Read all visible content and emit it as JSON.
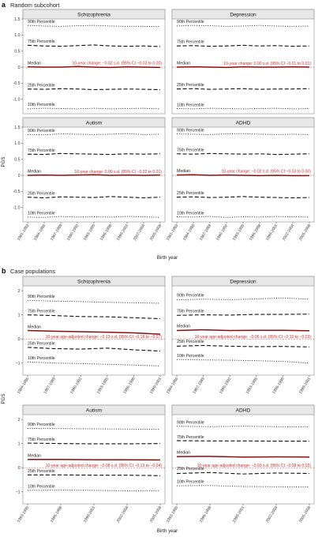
{
  "figure": {
    "sections": [
      {
        "letter": "a",
        "title": "Random subcohort",
        "xlabel": "Birth year",
        "ylabel": "PGS"
      },
      {
        "letter": "b",
        "title": "Case populations",
        "xlabel": "Birth year",
        "ylabel": "PGS"
      }
    ]
  },
  "colors": {
    "median": "#8a0e0e",
    "zero_line": "#e05050",
    "annotation": "#d62a2a",
    "panel_header": "#e8e8e8",
    "series": "#111111"
  },
  "chart_data": [
    {
      "section": "a",
      "panel": "Schizophrenia",
      "type": "line",
      "x": [
        "1981-1983",
        "1984-1986",
        "1987-1989",
        "1990-1992",
        "1993-1995",
        "1996-1998",
        "1999-2001",
        "2002-2004",
        "2005-2008"
      ],
      "ylim": [
        -1.45,
        1.5
      ],
      "yticks": [
        -1.0,
        -0.5,
        0,
        0.5,
        1.0,
        1.5
      ],
      "ytick_labels": [
        "-1.0",
        "-0.5",
        "0",
        "0.5",
        "1.0",
        "1.5"
      ],
      "series": [
        {
          "name": "90th Percentile",
          "values": [
            1.3,
            1.28,
            1.27,
            1.29,
            1.3,
            1.28,
            1.27,
            1.27,
            1.26
          ]
        },
        {
          "name": "75th Percentile",
          "values": [
            0.68,
            0.66,
            0.65,
            0.67,
            0.69,
            0.66,
            0.65,
            0.66,
            0.64
          ]
        },
        {
          "name": "Median",
          "values": [
            0.01,
            0.0,
            0.0,
            0.02,
            0.0,
            -0.01,
            0.01,
            0.0,
            -0.01
          ]
        },
        {
          "name": "25th Percentile",
          "values": [
            -0.68,
            -0.69,
            -0.67,
            -0.68,
            -0.7,
            -0.69,
            -0.68,
            -0.69,
            -0.7
          ]
        },
        {
          "name": "10th Percentile",
          "values": [
            -1.3,
            -1.28,
            -1.29,
            -1.3,
            -1.28,
            -1.3,
            -1.29,
            -1.28,
            -1.3
          ]
        }
      ],
      "annotation": "10-year change: −0.02 s.d. (95% CI −0.03 to 0.00)"
    },
    {
      "section": "a",
      "panel": "Depression",
      "type": "line",
      "x": [
        "1981-1983",
        "1984-1986",
        "1987-1989",
        "1990-1992",
        "1993-1995",
        "1996-1998",
        "1999-2001",
        "2002-2004",
        "2005-2008"
      ],
      "ylim": [
        -1.45,
        1.5
      ],
      "yticks": [
        -1.0,
        -0.5,
        0,
        0.5,
        1.0,
        1.5
      ],
      "ytick_labels": [
        "-1.0",
        "-0.5",
        "0",
        "0.5",
        "1.0",
        "1.5"
      ],
      "series": [
        {
          "name": "90th Percentile",
          "values": [
            1.28,
            1.3,
            1.29,
            1.27,
            1.28,
            1.3,
            1.28,
            1.27,
            1.28
          ]
        },
        {
          "name": "75th Percentile",
          "values": [
            0.66,
            0.67,
            0.65,
            0.66,
            0.68,
            0.66,
            0.67,
            0.65,
            0.66
          ]
        },
        {
          "name": "Median",
          "values": [
            0.0,
            0.01,
            0.0,
            -0.01,
            0.01,
            0.0,
            0.0,
            0.01,
            0.0
          ]
        },
        {
          "name": "25th Percentile",
          "values": [
            -0.68,
            -0.67,
            -0.69,
            -0.68,
            -0.67,
            -0.69,
            -0.68,
            -0.68,
            -0.67
          ]
        },
        {
          "name": "10th Percentile",
          "values": [
            -1.29,
            -1.3,
            -1.28,
            -1.29,
            -1.3,
            -1.29,
            -1.28,
            -1.3,
            -1.29
          ]
        }
      ],
      "annotation": "10-year change: 0.00 s.d. (95% CI −0.01 to 0.01)"
    },
    {
      "section": "a",
      "panel": "Autism",
      "type": "line",
      "x": [
        "1981-1983",
        "1984-1986",
        "1987-1989",
        "1990-1992",
        "1993-1995",
        "1996-1998",
        "1999-2001",
        "2002-2004",
        "2005-2008"
      ],
      "ylim": [
        -1.45,
        1.5
      ],
      "yticks": [
        -1.0,
        -0.5,
        0,
        0.5,
        1.0,
        1.5
      ],
      "ytick_labels": [
        "-1.0",
        "-0.5",
        "0",
        "0.5",
        "1.0",
        "1.5"
      ],
      "series": [
        {
          "name": "90th Percentile",
          "values": [
            1.27,
            1.26,
            1.29,
            1.28,
            1.27,
            1.28,
            1.3,
            1.27,
            1.28
          ]
        },
        {
          "name": "75th Percentile",
          "values": [
            0.66,
            0.65,
            0.68,
            0.67,
            0.66,
            0.65,
            0.67,
            0.66,
            0.67
          ]
        },
        {
          "name": "Median",
          "values": [
            0.0,
            0.01,
            0.0,
            0.01,
            0.02,
            0.0,
            0.01,
            0.0,
            0.01
          ]
        },
        {
          "name": "25th Percentile",
          "values": [
            -0.68,
            -0.7,
            -0.67,
            -0.68,
            -0.69,
            -0.66,
            -0.68,
            -0.7,
            -0.68
          ]
        },
        {
          "name": "10th Percentile",
          "values": [
            -1.3,
            -1.31,
            -1.28,
            -1.3,
            -1.29,
            -1.3,
            -1.28,
            -1.29,
            -1.31
          ]
        }
      ],
      "annotation": "10-year change: 0.00 s.d. (95% CI −0.02 to 0.01)"
    },
    {
      "section": "a",
      "panel": "ADHD",
      "type": "line",
      "x": [
        "1981-1983",
        "1984-1986",
        "1987-1989",
        "1990-1992",
        "1993-1995",
        "1996-1998",
        "1999-2001",
        "2002-2004",
        "2005-2008"
      ],
      "ylim": [
        -1.45,
        1.5
      ],
      "yticks": [
        -1.0,
        -0.5,
        0,
        0.5,
        1.0,
        1.5
      ],
      "ytick_labels": [
        "-1.0",
        "-0.5",
        "0",
        "0.5",
        "1.0",
        "1.5"
      ],
      "series": [
        {
          "name": "90th Percentile",
          "values": [
            1.29,
            1.28,
            1.27,
            1.29,
            1.3,
            1.28,
            1.27,
            1.28,
            1.27
          ]
        },
        {
          "name": "75th Percentile",
          "values": [
            0.67,
            0.66,
            0.68,
            0.67,
            0.66,
            0.67,
            0.65,
            0.66,
            0.67
          ]
        },
        {
          "name": "Median",
          "values": [
            0.01,
            0.02,
            0.0,
            0.01,
            0.0,
            -0.01,
            0.0,
            -0.01,
            -0.01
          ]
        },
        {
          "name": "25th Percentile",
          "values": [
            -0.68,
            -0.67,
            -0.69,
            -0.68,
            -0.66,
            -0.68,
            -0.69,
            -0.7,
            -0.69
          ]
        },
        {
          "name": "10th Percentile",
          "values": [
            -1.29,
            -1.3,
            -1.28,
            -1.31,
            -1.29,
            -1.3,
            -1.28,
            -1.29,
            -1.3
          ]
        }
      ],
      "annotation": "10-year change: −0.02 s.d. (95% CI −0.03 to 0.00)"
    },
    {
      "section": "b",
      "panel": "Schizophrenia",
      "type": "line",
      "x": [
        "1984-1986",
        "1987-1989",
        "1990-1992",
        "1993-1995",
        "1996-1998",
        "1999-2001"
      ],
      "ylim": [
        -1.5,
        2.2
      ],
      "yticks": [
        -1,
        0,
        1,
        2
      ],
      "ytick_labels": [
        "−1",
        "0",
        "1",
        "2"
      ],
      "series": [
        {
          "name": "90th Percentile",
          "values": [
            1.6,
            1.57,
            1.55,
            1.52,
            1.5,
            1.48
          ]
        },
        {
          "name": "75th Percentile",
          "values": [
            1.0,
            0.97,
            0.93,
            0.92,
            0.88,
            0.84
          ]
        },
        {
          "name": "Median",
          "values": [
            0.35,
            0.32,
            0.3,
            0.28,
            0.25,
            0.2
          ]
        },
        {
          "name": "25th Percentile",
          "values": [
            -0.35,
            -0.4,
            -0.42,
            -0.38,
            -0.45,
            -0.5
          ]
        },
        {
          "name": "10th Percentile",
          "values": [
            -0.95,
            -1.0,
            -1.02,
            -1.05,
            -1.08,
            -1.12
          ]
        }
      ],
      "annotation": "10-year age-adjusted change: −0.13 s.d. (95% CI −0.18 to −0.07)"
    },
    {
      "section": "b",
      "panel": "Depression",
      "type": "line",
      "x": [
        "1984-1986",
        "1987-1989",
        "1990-1992",
        "1993-1995",
        "1996-1998",
        "1999-2001"
      ],
      "ylim": [
        -1.5,
        2.2
      ],
      "yticks": [
        -1,
        0,
        1,
        2
      ],
      "ytick_labels": [
        "−1",
        "0",
        "1",
        "2"
      ],
      "series": [
        {
          "name": "90th Percentile",
          "values": [
            1.62,
            1.65,
            1.63,
            1.66,
            1.7,
            1.65
          ]
        },
        {
          "name": "75th Percentile",
          "values": [
            0.98,
            1.0,
            0.99,
            1.02,
            1.02,
            1.03
          ]
        },
        {
          "name": "Median",
          "values": [
            0.35,
            0.38,
            0.35,
            0.36,
            0.36,
            0.34
          ]
        },
        {
          "name": "25th Percentile",
          "values": [
            -0.3,
            -0.27,
            -0.3,
            -0.32,
            -0.31,
            -0.33
          ]
        },
        {
          "name": "10th Percentile",
          "values": [
            -0.85,
            -0.87,
            -0.88,
            -0.9,
            -0.93,
            -1.0
          ]
        }
      ],
      "annotation": "10-year age-adjusted change: −0.06 s.d. (95% CI −0.10 to −0.03)"
    },
    {
      "section": "b",
      "panel": "Autism",
      "type": "line",
      "x": [
        "1993-1995",
        "1996-1998",
        "1999-2001",
        "2002-2004",
        "2005-2008"
      ],
      "ylim": [
        -1.5,
        2.2
      ],
      "yticks": [
        -1,
        0,
        1,
        2
      ],
      "ytick_labels": [
        "−1",
        "0",
        "1",
        "2"
      ],
      "series": [
        {
          "name": "90th Percentile",
          "values": [
            1.63,
            1.62,
            1.61,
            1.6,
            1.59
          ]
        },
        {
          "name": "75th Percentile",
          "values": [
            1.02,
            1.0,
            0.99,
            0.99,
            1.0
          ]
        },
        {
          "name": "Median",
          "values": [
            0.34,
            0.34,
            0.33,
            0.33,
            0.32
          ]
        },
        {
          "name": "25th Percentile",
          "values": [
            -0.3,
            -0.3,
            -0.31,
            -0.31,
            -0.33
          ]
        },
        {
          "name": "10th Percentile",
          "values": [
            -0.94,
            -0.93,
            -0.94,
            -0.96,
            -0.95
          ]
        }
      ],
      "annotation": "10-year age-adjusted change: −0.08 s.d. (95% CI −0.13 to −0.04)"
    },
    {
      "section": "b",
      "panel": "ADHD",
      "type": "line",
      "x": [
        "1993-1995",
        "1996-1998",
        "1999-2001",
        "2002-2004",
        "2005-2008"
      ],
      "ylim": [
        -1.5,
        2.2
      ],
      "yticks": [
        -1,
        0,
        1,
        2
      ],
      "ytick_labels": [
        "−1",
        "0",
        "1",
        "2"
      ],
      "series": [
        {
          "name": "90th Percentile",
          "values": [
            1.72,
            1.7,
            1.72,
            1.7,
            1.69
          ]
        },
        {
          "name": "75th Percentile",
          "values": [
            1.12,
            1.11,
            1.11,
            1.1,
            1.1
          ]
        },
        {
          "name": "Median",
          "values": [
            0.46,
            0.47,
            0.44,
            0.45,
            0.44
          ]
        },
        {
          "name": "25th Percentile",
          "values": [
            -0.24,
            -0.2,
            -0.26,
            -0.22,
            -0.24
          ]
        },
        {
          "name": "10th Percentile",
          "values": [
            -0.75,
            -0.74,
            -0.78,
            -0.79,
            -0.8
          ]
        }
      ],
      "annotation": "10-year age-adjusted change: −0.03 s.d. (95% CI −0.08 to 0.02)"
    }
  ]
}
